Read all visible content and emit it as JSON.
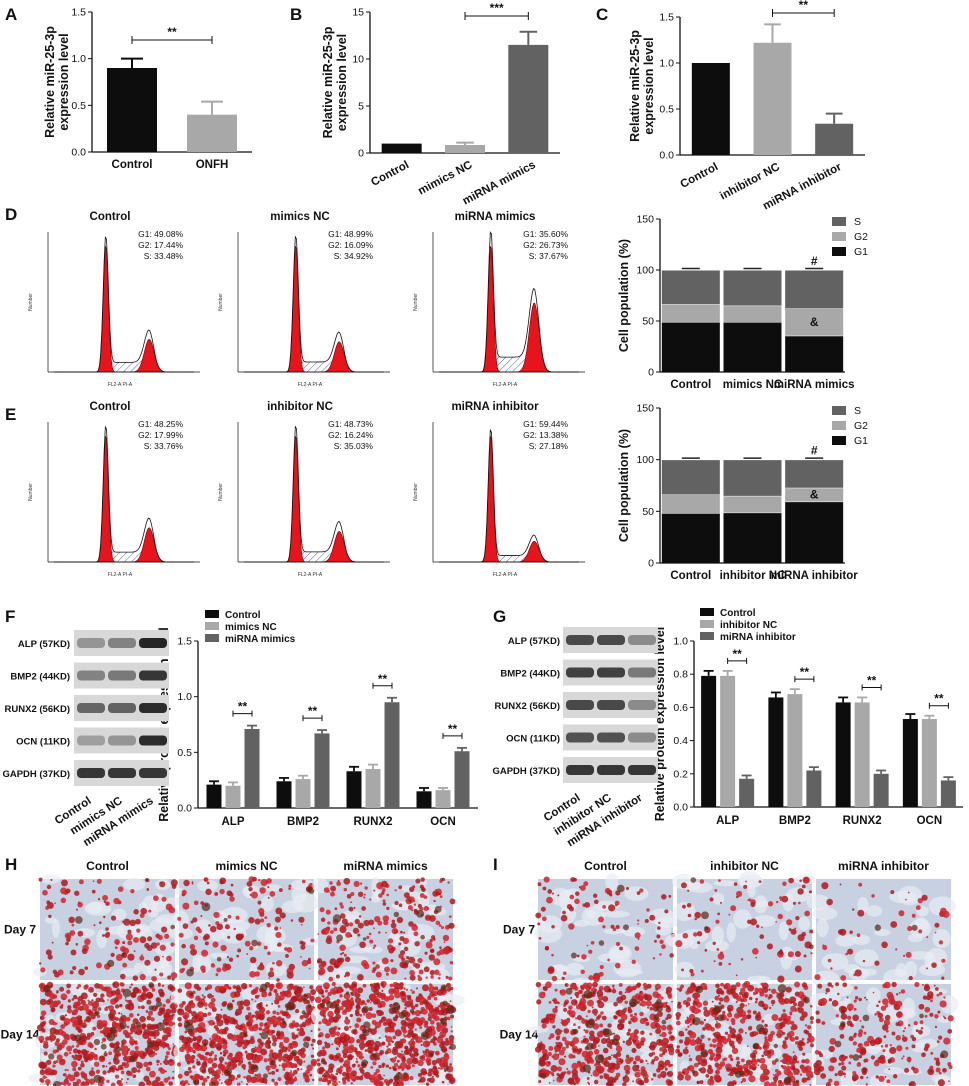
{
  "panels": {
    "A": "A",
    "B": "B",
    "C": "C",
    "D": "D",
    "E": "E",
    "F": "F",
    "G": "G",
    "H": "H",
    "I": "I"
  },
  "colors": {
    "black": "#0d0d0d",
    "light": "#a8a8a8",
    "dark": "#626262",
    "red": "#e8141b",
    "hatch": "#5560b8"
  },
  "chart_data": [
    {
      "id": "A",
      "type": "bar",
      "ylabel": "Relative miR-25-3p expression level",
      "categories": [
        "Control",
        "ONFH"
      ],
      "values": [
        0.9,
        0.4
      ],
      "errors": [
        0.1,
        0.14
      ],
      "ylim": [
        0,
        1.5
      ],
      "yticks": [
        "0.0",
        "0.5",
        "1.0",
        "1.5"
      ],
      "significance": [
        {
          "from": 0,
          "to": 1,
          "label": "**"
        }
      ]
    },
    {
      "id": "B",
      "type": "bar",
      "ylabel": "Relative miR-25-3p expression level",
      "categories": [
        "Control",
        "mimics NC",
        "miRNA mimics"
      ],
      "values": [
        1.0,
        0.85,
        11.5
      ],
      "errors": [
        0.0,
        0.25,
        1.4
      ],
      "ylim": [
        0,
        15
      ],
      "yticks": [
        "0",
        "5",
        "10",
        "15"
      ],
      "significance": [
        {
          "from": 1,
          "to": 2,
          "label": "***"
        }
      ]
    },
    {
      "id": "C",
      "type": "bar",
      "ylabel": "Relative miR-25-3p expression level",
      "categories": [
        "Control",
        "inhibitor NC",
        "miRNA inhibitor"
      ],
      "values": [
        1.0,
        1.22,
        0.34
      ],
      "errors": [
        0.0,
        0.2,
        0.11
      ],
      "ylim": [
        0,
        1.5
      ],
      "yticks": [
        "0.0",
        "0.5",
        "1.0",
        "1.5"
      ],
      "significance": [
        {
          "from": 1,
          "to": 2,
          "label": "**"
        }
      ]
    },
    {
      "id": "D-stack",
      "type": "bar",
      "ylabel": "Cell population (%)",
      "categories": [
        "Control",
        "mimics NC",
        "miRNA mimics"
      ],
      "series": [
        {
          "name": "G1",
          "values": [
            49.08,
            48.99,
            35.6
          ]
        },
        {
          "name": "G2",
          "values": [
            17.44,
            16.09,
            26.73
          ]
        },
        {
          "name": "S",
          "values": [
            33.48,
            34.92,
            37.67
          ]
        }
      ],
      "ylim": [
        0,
        150
      ],
      "yticks": [
        "0",
        "50",
        "100",
        "150"
      ],
      "marks": [
        {
          "cat": 2,
          "segment": "S",
          "label": "#"
        },
        {
          "cat": 2,
          "segment": "G2",
          "label": "&"
        }
      ]
    },
    {
      "id": "E-stack",
      "type": "bar",
      "ylabel": "Cell population (%)",
      "categories": [
        "Control",
        "inhibitor NC",
        "miRNA inhibitor"
      ],
      "series": [
        {
          "name": "G1",
          "values": [
            48.25,
            48.73,
            59.44
          ]
        },
        {
          "name": "G2",
          "values": [
            17.99,
            16.24,
            13.38
          ]
        },
        {
          "name": "S",
          "values": [
            33.76,
            35.03,
            27.18
          ]
        }
      ],
      "ylim": [
        0,
        150
      ],
      "yticks": [
        "0",
        "50",
        "100",
        "150"
      ],
      "marks": [
        {
          "cat": 2,
          "segment": "S",
          "label": "#"
        },
        {
          "cat": 2,
          "segment": "G2",
          "label": "&"
        }
      ]
    },
    {
      "id": "F-bars",
      "type": "bar",
      "ylabel": "Relative protein expression level",
      "categories": [
        "ALP",
        "BMP2",
        "RUNX2",
        "OCN"
      ],
      "series": [
        {
          "name": "Control",
          "values": [
            0.21,
            0.24,
            0.33,
            0.15
          ],
          "errors": [
            0.03,
            0.03,
            0.04,
            0.03
          ]
        },
        {
          "name": "mimics NC",
          "values": [
            0.2,
            0.26,
            0.35,
            0.16
          ],
          "errors": [
            0.03,
            0.03,
            0.04,
            0.02
          ]
        },
        {
          "name": "miRNA mimics",
          "values": [
            0.71,
            0.67,
            0.95,
            0.51
          ],
          "errors": [
            0.03,
            0.03,
            0.04,
            0.03
          ]
        }
      ],
      "ylim": [
        0,
        1.5
      ],
      "yticks": [
        "0.0",
        "0.5",
        "1.0",
        "1.5"
      ],
      "significance": "**"
    },
    {
      "id": "G-bars",
      "type": "bar",
      "ylabel": "Relative protein expression level",
      "categories": [
        "ALP",
        "BMP2",
        "RUNX2",
        "OCN"
      ],
      "series": [
        {
          "name": "Control",
          "values": [
            0.79,
            0.66,
            0.63,
            0.53
          ],
          "errors": [
            0.03,
            0.03,
            0.03,
            0.03
          ]
        },
        {
          "name": "inhibitor NC",
          "values": [
            0.79,
            0.68,
            0.63,
            0.53
          ],
          "errors": [
            0.03,
            0.03,
            0.03,
            0.02
          ]
        },
        {
          "name": "miRNA  inhibitor",
          "values": [
            0.17,
            0.22,
            0.2,
            0.16
          ],
          "errors": [
            0.02,
            0.02,
            0.02,
            0.02
          ]
        }
      ],
      "ylim": [
        0,
        1.0
      ],
      "yticks": [
        "0.0",
        "0.2",
        "0.4",
        "0.6",
        "0.8",
        "1.0"
      ],
      "significance": "**"
    }
  ],
  "flow": {
    "D": [
      {
        "title": "Control",
        "stats": [
          "G1: 49.08%",
          "G2: 17.44%",
          "S: 33.48%"
        ]
      },
      {
        "title": "mimics NC",
        "stats": [
          "G1: 48.99%",
          "G2: 16.09%",
          "S: 34.92%"
        ]
      },
      {
        "title": "miRNA mimics",
        "stats": [
          "G1: 35.60%",
          "G2: 26.73%",
          "S: 37.67%"
        ]
      }
    ],
    "E": [
      {
        "title": "Control",
        "stats": [
          "G1: 48.25%",
          "G2: 17.99%",
          "S: 33.76%"
        ]
      },
      {
        "title": "inhibitor NC",
        "stats": [
          "G1: 48.73%",
          "G2: 16.24%",
          "S: 35.03%"
        ]
      },
      {
        "title": "miRNA inhibitor",
        "stats": [
          "G1: 59.44%",
          "G2: 13.38%",
          "S: 27.18%"
        ]
      }
    ],
    "xaxis": "FL2-A PI-A",
    "yaxis": "Number"
  },
  "blots": {
    "F": {
      "rows": [
        "ALP (57KD)",
        "BMP2 (44KD)",
        "RUNX2 (56KD)",
        "OCN (11KD)",
        "GAPDH (37KD)"
      ],
      "lanes": [
        "Control",
        "mimics NC",
        "miRNA mimics"
      ]
    },
    "G": {
      "rows": [
        "ALP (57KD)",
        "BMP2 (44KD)",
        "RUNX2 (56KD)",
        "OCN (11KD)",
        "GAPDH (37KD)"
      ],
      "lanes": [
        "Control",
        "inhibitor NC",
        "miRNA inhibitor"
      ]
    }
  },
  "stain": {
    "H": {
      "columns": [
        "Control",
        "mimics NC",
        "miRNA mimics"
      ],
      "rows": [
        "Day 7",
        "Day 14"
      ]
    },
    "I": {
      "columns": [
        "Control",
        "inhibitor NC",
        "miRNA inhibitor"
      ],
      "rows": [
        "Day 7",
        "Day 14"
      ]
    }
  }
}
